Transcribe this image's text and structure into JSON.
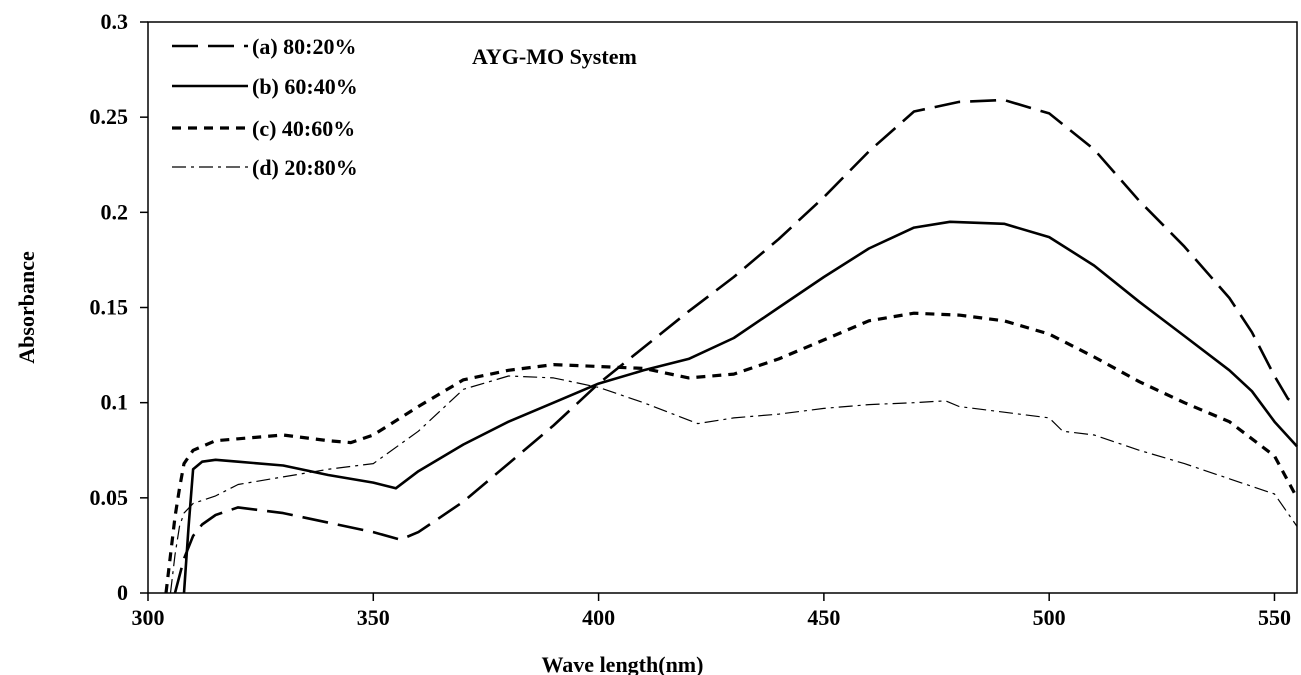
{
  "chart_data": {
    "type": "line",
    "title": "AYG-MO System",
    "xlabel": "Wave length(nm)",
    "ylabel": "Absorbance",
    "xlim": [
      300,
      555
    ],
    "ylim": [
      0,
      0.3
    ],
    "x_ticks": [
      300,
      350,
      400,
      450,
      500,
      550
    ],
    "y_ticks": [
      0,
      0.05,
      0.1,
      0.15,
      0.2,
      0.25,
      0.3
    ],
    "x_tick_labels": [
      "300",
      "350",
      "400",
      "450",
      "500",
      "550"
    ],
    "y_tick_labels": [
      "0",
      "0.05",
      "0.1",
      "0.15",
      "0.2",
      "0.25",
      "0.3"
    ],
    "grid": false,
    "legend_position": "top-left",
    "series": [
      {
        "name": "(a) 80:20%",
        "dash": "long-dash",
        "x": [
          306,
          308,
          310,
          312,
          315,
          320,
          330,
          340,
          350,
          356,
          360,
          370,
          380,
          390,
          400,
          410,
          420,
          430,
          440,
          450,
          460,
          470,
          480,
          490,
          500,
          510,
          520,
          530,
          540,
          545,
          550,
          553,
          555
        ],
        "y": [
          0,
          0.018,
          0.03,
          0.036,
          0.041,
          0.045,
          0.042,
          0.037,
          0.032,
          0.028,
          0.032,
          0.048,
          0.068,
          0.088,
          0.11,
          0.129,
          0.148,
          0.166,
          0.186,
          0.208,
          0.232,
          0.253,
          0.258,
          0.259,
          0.252,
          0.233,
          0.206,
          0.182,
          0.155,
          0.137,
          0.114,
          0.102,
          0.1
        ]
      },
      {
        "name": "(b) 60:40%",
        "dash": "solid",
        "x": [
          308,
          309,
          310,
          312,
          315,
          320,
          330,
          340,
          350,
          355,
          360,
          370,
          380,
          390,
          400,
          410,
          420,
          430,
          440,
          450,
          460,
          470,
          478,
          490,
          500,
          510,
          520,
          530,
          540,
          545,
          550,
          555
        ],
        "y": [
          0,
          0.035,
          0.065,
          0.069,
          0.07,
          0.069,
          0.067,
          0.062,
          0.058,
          0.055,
          0.064,
          0.078,
          0.09,
          0.1,
          0.11,
          0.117,
          0.123,
          0.134,
          0.15,
          0.166,
          0.181,
          0.192,
          0.195,
          0.194,
          0.187,
          0.172,
          0.153,
          0.135,
          0.117,
          0.106,
          0.09,
          0.077
        ]
      },
      {
        "name": "(c) 40:60%",
        "dash": "short-dash",
        "x": [
          304,
          305,
          306,
          307,
          308,
          310,
          315,
          320,
          330,
          340,
          345,
          350,
          360,
          370,
          380,
          390,
          400,
          410,
          420,
          430,
          440,
          450,
          460,
          470,
          480,
          490,
          500,
          510,
          520,
          530,
          540,
          550,
          555
        ],
        "y": [
          0,
          0.02,
          0.04,
          0.055,
          0.068,
          0.075,
          0.08,
          0.081,
          0.083,
          0.08,
          0.079,
          0.083,
          0.098,
          0.112,
          0.117,
          0.12,
          0.119,
          0.118,
          0.113,
          0.115,
          0.123,
          0.133,
          0.143,
          0.147,
          0.146,
          0.143,
          0.136,
          0.124,
          0.111,
          0.1,
          0.09,
          0.072,
          0.05
        ]
      },
      {
        "name": "(d) 20:80%",
        "dash": "dash-dot",
        "x": [
          305,
          306,
          307,
          308,
          310,
          315,
          320,
          330,
          340,
          350,
          360,
          370,
          380,
          390,
          400,
          410,
          422,
          430,
          440,
          450,
          460,
          470,
          477,
          480,
          490,
          500,
          503,
          510,
          520,
          530,
          540,
          550,
          555
        ],
        "y": [
          0,
          0.02,
          0.035,
          0.042,
          0.047,
          0.051,
          0.057,
          0.061,
          0.065,
          0.068,
          0.085,
          0.107,
          0.114,
          0.113,
          0.108,
          0.1,
          0.089,
          0.092,
          0.094,
          0.097,
          0.099,
          0.1,
          0.101,
          0.098,
          0.095,
          0.092,
          0.085,
          0.083,
          0.075,
          0.068,
          0.06,
          0.052,
          0.035
        ]
      }
    ]
  }
}
